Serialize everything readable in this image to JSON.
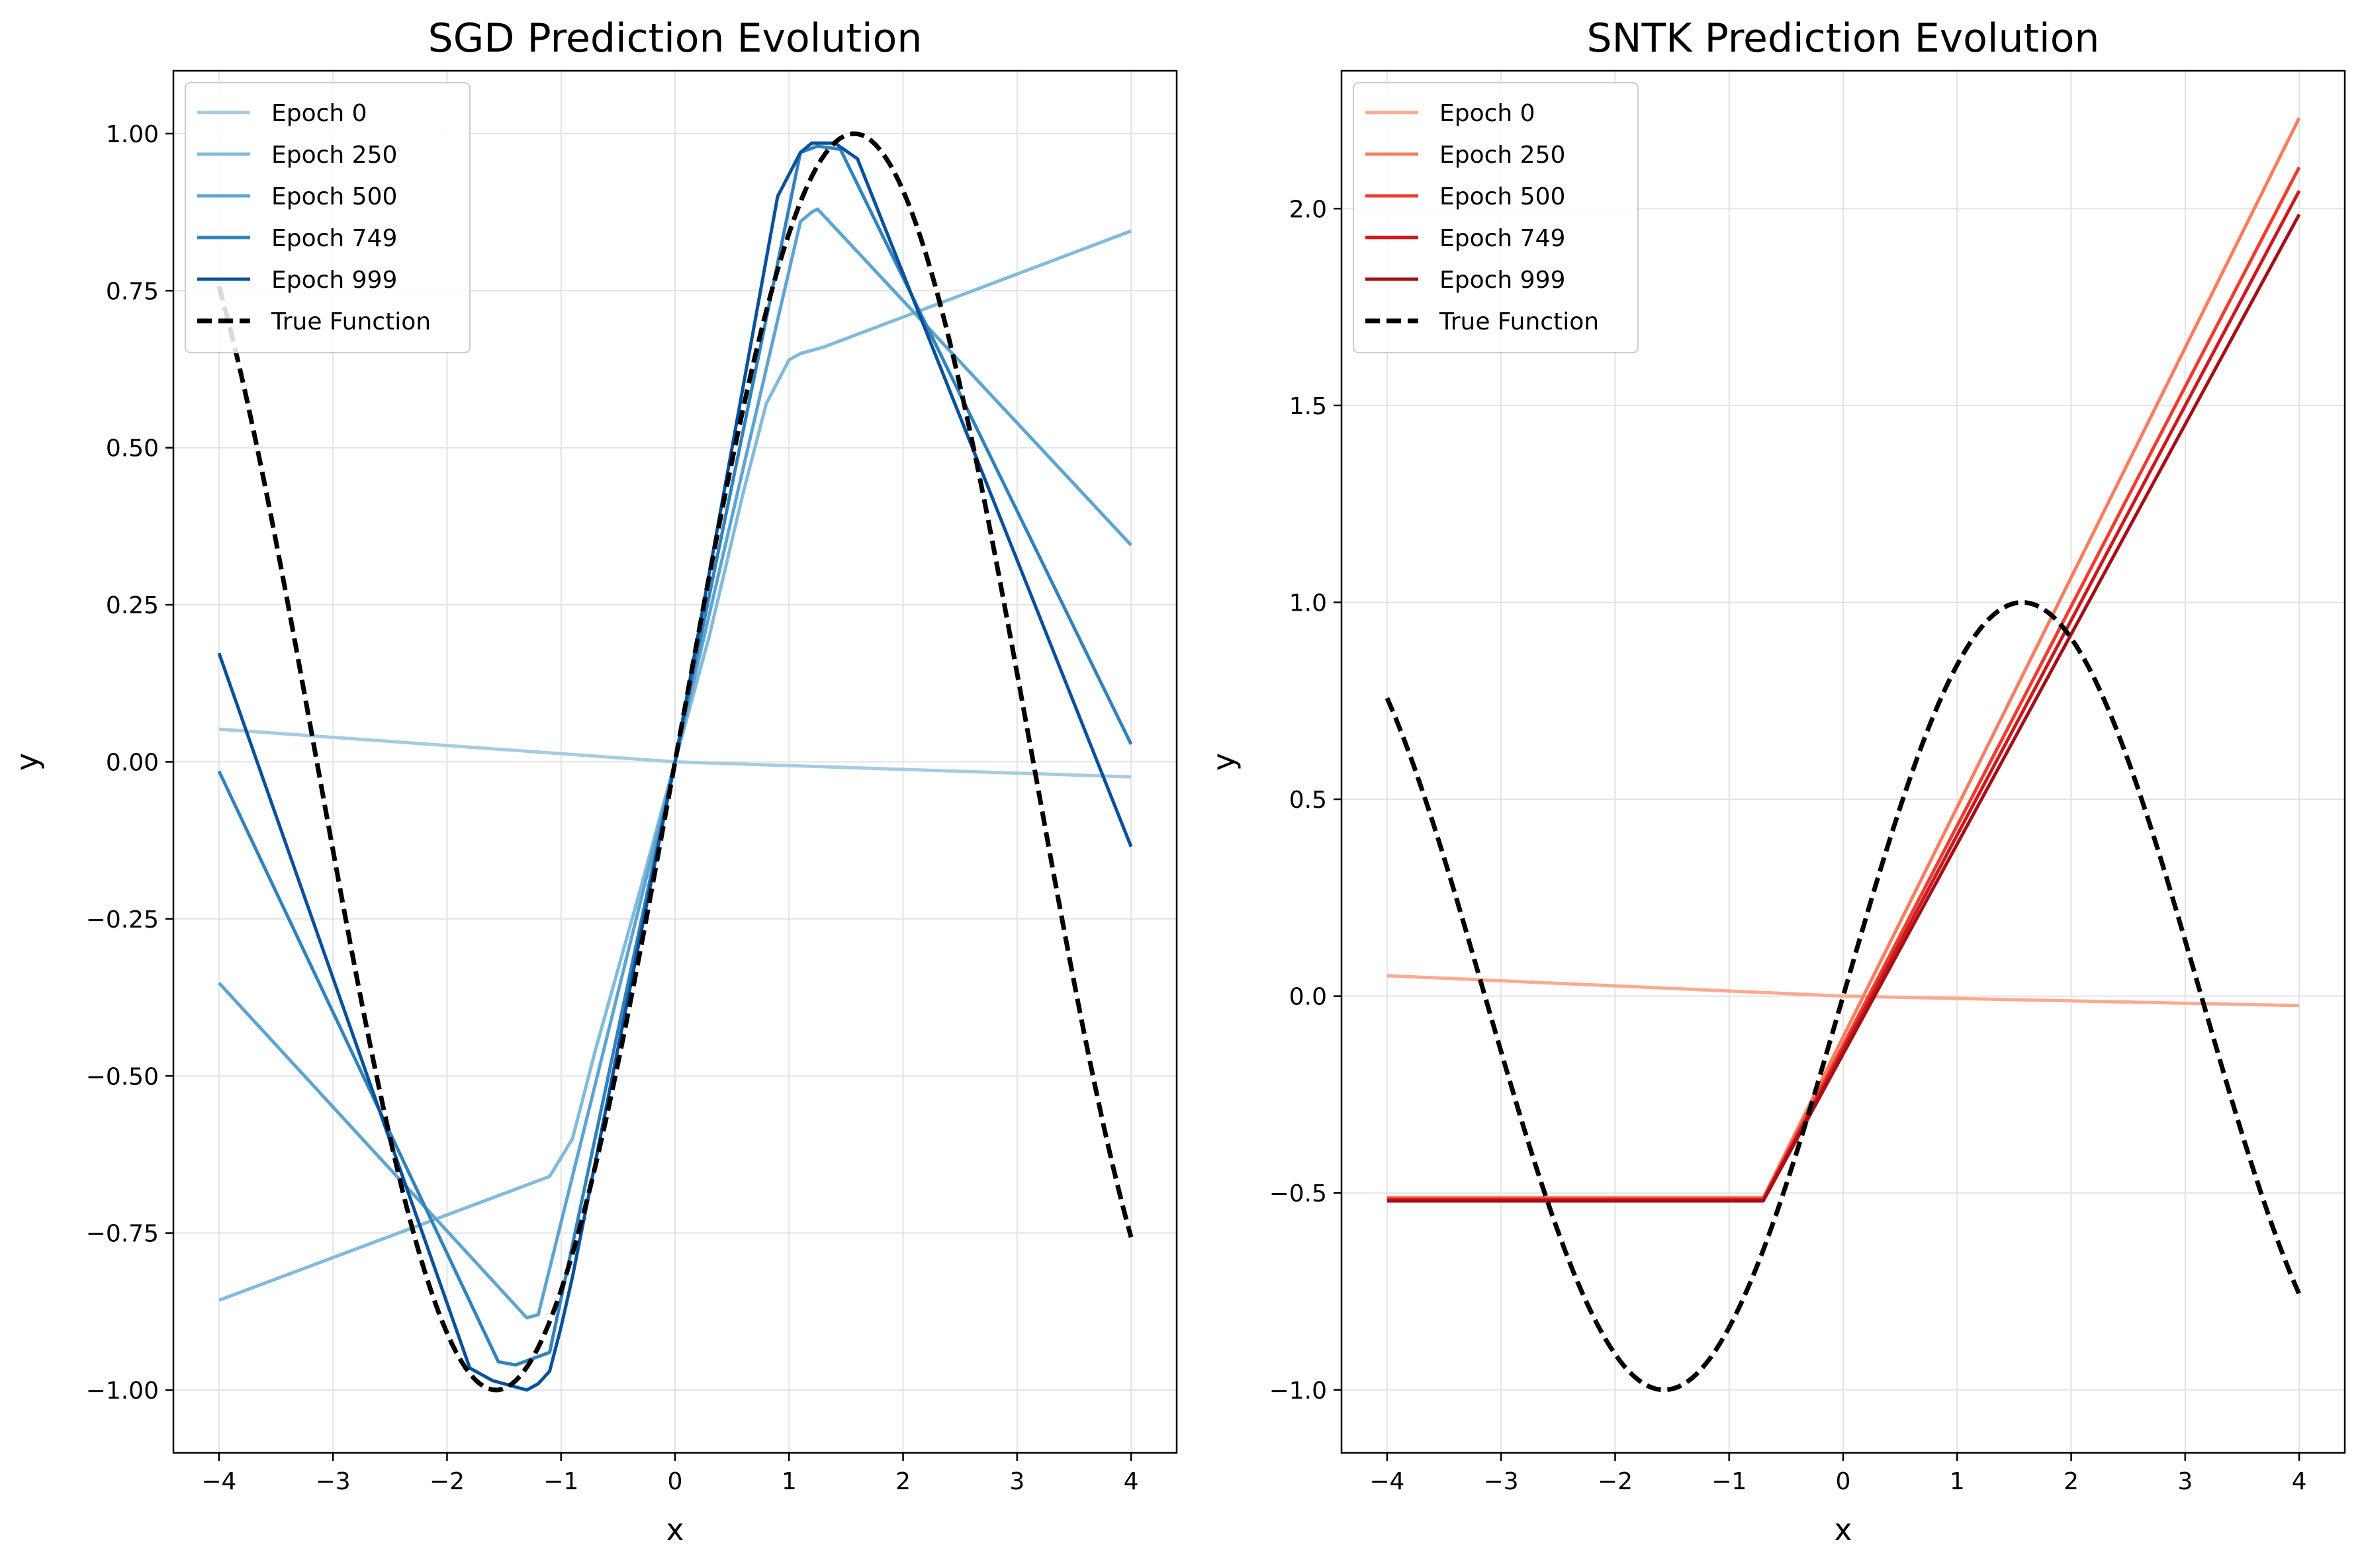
{
  "chart_data": [
    {
      "type": "line",
      "title": "SGD Prediction Evolution",
      "xlabel": "x",
      "ylabel": "y",
      "xlim": [
        -4.4,
        4.4
      ],
      "ylim": [
        -1.1,
        1.1
      ],
      "xticks": [
        -4,
        -3,
        -2,
        -1,
        0,
        1,
        2,
        3,
        4
      ],
      "xtick_labels": [
        "−4",
        "−3",
        "−2",
        "−1",
        "0",
        "1",
        "2",
        "3",
        "4"
      ],
      "yticks": [
        -1.0,
        -0.75,
        -0.5,
        -0.25,
        0.0,
        0.25,
        0.5,
        0.75,
        1.0
      ],
      "ytick_labels": [
        "−1.00",
        "−0.75",
        "−0.50",
        "−0.25",
        "0.00",
        "0.25",
        "0.50",
        "0.75",
        "1.00"
      ],
      "grid": true,
      "legend_position": "upper-left",
      "series": [
        {
          "name": "Epoch 0",
          "color": "#a6cbe3",
          "x": [
            -4,
            0,
            4
          ],
          "y": [
            0.052,
            0.0,
            -0.024
          ]
        },
        {
          "name": "Epoch 250",
          "color": "#82badb",
          "x": [
            -4,
            -1.1,
            -0.9,
            -0.7,
            -0.5,
            -0.3,
            0,
            0.3,
            0.6,
            0.8,
            1.0,
            1.1,
            1.3,
            4
          ],
          "y": [
            -0.857,
            -0.66,
            -0.6,
            -0.46,
            -0.33,
            -0.2,
            0.0,
            0.2,
            0.43,
            0.57,
            0.64,
            0.65,
            0.66,
            0.845
          ]
        },
        {
          "name": "Epoch 500",
          "color": "#5da4d1",
          "x": [
            -4,
            -1.3,
            -1.2,
            0,
            1.1,
            1.2,
            1.25,
            4
          ],
          "y": [
            -0.352,
            -0.885,
            -0.88,
            0.0,
            0.86,
            0.875,
            0.88,
            0.345
          ]
        },
        {
          "name": "Epoch 749",
          "color": "#3182bd",
          "x": [
            -4,
            -1.55,
            -1.4,
            -1.1,
            0,
            1.1,
            1.25,
            1.45,
            4
          ],
          "y": [
            -0.015,
            -0.955,
            -0.96,
            -0.94,
            0.0,
            0.97,
            0.98,
            0.975,
            0.028
          ]
        },
        {
          "name": "Epoch 999",
          "color": "#08519c",
          "x": [
            -4,
            -1.8,
            -1.6,
            -1.3,
            -1.2,
            -1.1,
            -1.0,
            -0.9,
            0,
            0.9,
            1.1,
            1.2,
            1.4,
            1.6,
            4
          ],
          "y": [
            0.173,
            -0.965,
            -0.985,
            -1.0,
            -0.99,
            -0.97,
            -0.9,
            -0.82,
            0.0,
            0.9,
            0.97,
            0.985,
            0.985,
            0.96,
            -0.135
          ]
        },
        {
          "name": "True Function",
          "color": "#000000",
          "dashed": true,
          "function": "sin",
          "x_range": [
            -4,
            4
          ]
        }
      ]
    },
    {
      "type": "line",
      "title": "SNTK Prediction Evolution",
      "xlabel": "x",
      "ylabel": "y",
      "xlim": [
        -4.4,
        4.4
      ],
      "ylim": [
        -1.16,
        2.35
      ],
      "xticks": [
        -4,
        -3,
        -2,
        -1,
        0,
        1,
        2,
        3,
        4
      ],
      "xtick_labels": [
        "−4",
        "−3",
        "−2",
        "−1",
        "0",
        "1",
        "2",
        "3",
        "4"
      ],
      "yticks": [
        -1.0,
        -0.5,
        0.0,
        0.5,
        1.0,
        1.5,
        2.0
      ],
      "ytick_labels": [
        "−1.0",
        "−0.5",
        "0.0",
        "0.5",
        "1.0",
        "1.5",
        "2.0"
      ],
      "grid": true,
      "legend_position": "upper-left",
      "series": [
        {
          "name": "Epoch 0",
          "color": "#fcaa8e",
          "x": [
            -4,
            0,
            4
          ],
          "y": [
            0.052,
            0.0,
            -0.024
          ]
        },
        {
          "name": "Epoch 250",
          "color": "#fb7d5d",
          "x": [
            -4,
            -0.7,
            4
          ],
          "y": [
            -0.512,
            -0.512,
            2.23
          ]
        },
        {
          "name": "Epoch 500",
          "color": "#ef3c2d",
          "x": [
            -4,
            -0.7,
            4
          ],
          "y": [
            -0.515,
            -0.515,
            2.105
          ]
        },
        {
          "name": "Epoch 749",
          "color": "#cc191e",
          "x": [
            -4,
            -0.7,
            4
          ],
          "y": [
            -0.518,
            -0.518,
            2.045
          ]
        },
        {
          "name": "Epoch 999",
          "color": "#a50f15",
          "x": [
            -4,
            -0.7,
            4
          ],
          "y": [
            -0.52,
            -0.52,
            1.985
          ]
        },
        {
          "name": "True Function",
          "color": "#000000",
          "dashed": true,
          "function": "sin",
          "x_range": [
            -4,
            4
          ]
        }
      ]
    }
  ]
}
